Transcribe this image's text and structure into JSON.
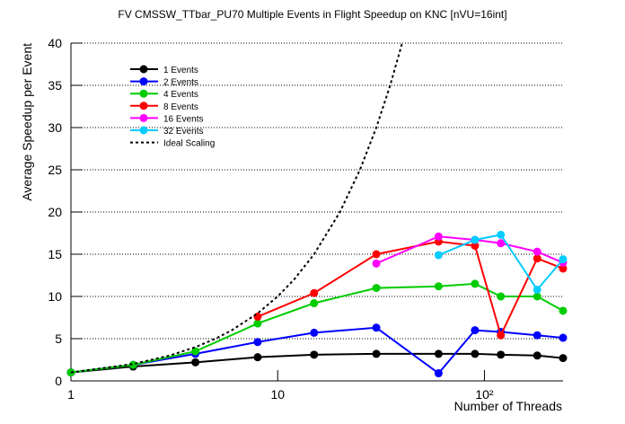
{
  "chart_data": {
    "type": "line",
    "title": "FV CMSSW_TTbar_PU70 Multiple Events in Flight Speedup on KNC [nVU=16int]",
    "x_label": "Number of Threads",
    "y_label": "Average Speedup per Event",
    "x": [
      1,
      2,
      4,
      8,
      15,
      30,
      60,
      90,
      120,
      180,
      240
    ],
    "xlim": [
      1,
      240
    ],
    "ylim": [
      0,
      40
    ],
    "log_x": true,
    "grid_y": true,
    "xticks": [
      1,
      10,
      {
        "value": 100,
        "label": "10²"
      }
    ],
    "yticks": [
      0,
      5,
      10,
      15,
      20,
      25,
      30,
      35,
      40
    ],
    "legend": "top-left",
    "series": [
      {
        "name": "1 Events",
        "color": "#000000",
        "values": [
          1.0,
          1.7,
          2.2,
          2.8,
          3.1,
          3.2,
          3.2,
          3.2,
          3.1,
          3.0,
          2.7
        ]
      },
      {
        "name": "2 Events",
        "color": "#0000ff",
        "values": [
          1.0,
          1.9,
          3.2,
          4.6,
          5.7,
          6.3,
          0.9,
          6.0,
          5.8,
          5.4,
          5.1
        ]
      },
      {
        "name": "4 Events",
        "color": "#00cc00",
        "values": [
          1.0,
          1.9,
          3.5,
          6.8,
          9.2,
          11.0,
          11.2,
          11.5,
          10.0,
          10.0,
          8.3
        ]
      },
      {
        "name": "8 Events",
        "color": "#ff0000",
        "values": [
          null,
          null,
          null,
          7.6,
          10.4,
          15.0,
          16.5,
          16.0,
          5.4,
          14.5,
          13.3
        ]
      },
      {
        "name": "16 Events",
        "color": "#ff00ff",
        "values": [
          null,
          null,
          null,
          null,
          null,
          13.9,
          17.1,
          16.7,
          16.3,
          15.3,
          14.0
        ]
      },
      {
        "name": "32 Events",
        "color": "#00ccff",
        "values": [
          null,
          null,
          null,
          null,
          null,
          null,
          14.9,
          16.7,
          17.3,
          10.8,
          14.4
        ]
      },
      {
        "name": "Ideal Scaling",
        "color": "#000000",
        "dashed": true,
        "markers": false,
        "x": [
          1,
          2,
          3,
          4,
          5,
          6,
          8,
          10,
          12,
          15,
          20,
          25,
          30,
          35,
          40
        ],
        "values": [
          1,
          2,
          3,
          4,
          5,
          6,
          8,
          10,
          12,
          15,
          20,
          25,
          30,
          35,
          40
        ]
      }
    ]
  }
}
